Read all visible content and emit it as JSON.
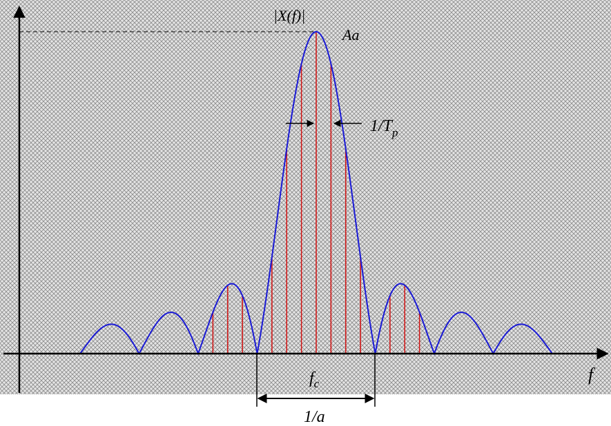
{
  "labels": {
    "y_axis": "|X(f)|",
    "peak": "Aa",
    "line_spacing": "1/T",
    "line_spacing_sub": "p",
    "x_axis": "f",
    "center": "f",
    "center_sub": "c",
    "main_lobe_width": "1/a"
  },
  "colors": {
    "envelope": "#1a1ad6",
    "spectral_lines": "#d01818",
    "axes": "#000000",
    "hatch": "#8a8a8a",
    "background": "#d8d8d8"
  },
  "spectrum": {
    "peak_value": "Aa",
    "center_frequency": "f_c",
    "main_lobe_width": "1/a",
    "line_spacing": "1/T_p",
    "lines_per_null_interval": 4
  }
}
